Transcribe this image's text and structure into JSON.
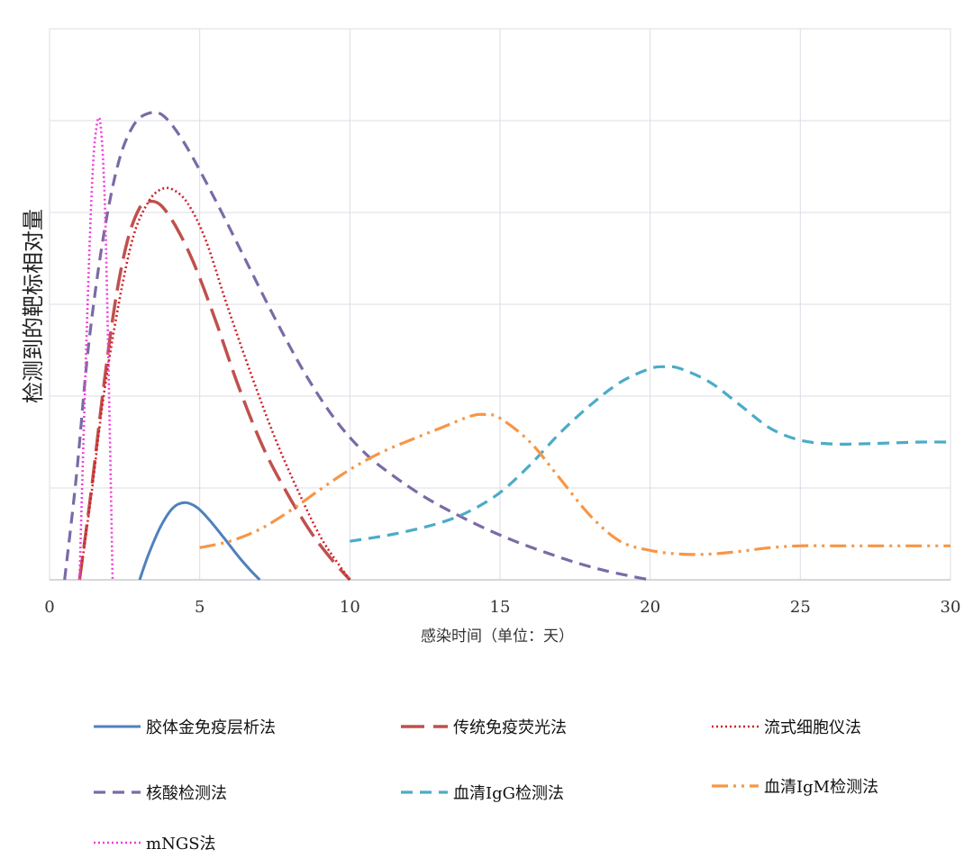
{
  "chart_data": {
    "type": "line",
    "title": "",
    "xlabel": "感染时间（单位：天）",
    "ylabel": "检测到的靶标相对量",
    "xlim": [
      0,
      30
    ],
    "ylim": [
      0,
      6
    ],
    "xticks": [
      0,
      5,
      10,
      15,
      20,
      25,
      30
    ],
    "grid": true,
    "legend_position": "bottom",
    "series": [
      {
        "name": "胶体金免疫层析法",
        "color": "#4f81bd",
        "dash": "solid",
        "x": [
          3.0,
          3.3,
          3.7,
          4.1,
          4.5,
          4.9,
          5.3,
          5.8,
          6.3,
          6.7,
          7.0
        ],
        "y": [
          0,
          0.28,
          0.58,
          0.78,
          0.84,
          0.79,
          0.66,
          0.46,
          0.25,
          0.1,
          0
        ]
      },
      {
        "name": "传统免疫荧光法",
        "color": "#c0504d",
        "dash": "longdash",
        "x": [
          1.0,
          1.4,
          1.8,
          2.2,
          2.6,
          3.0,
          3.3,
          3.7,
          4.2,
          4.8,
          5.5,
          6.3,
          7.1,
          7.9,
          8.7,
          9.4,
          10.0
        ],
        "y": [
          0,
          1.0,
          2.1,
          3.05,
          3.7,
          4.05,
          4.12,
          4.08,
          3.85,
          3.45,
          2.85,
          2.1,
          1.45,
          0.95,
          0.52,
          0.22,
          0
        ]
      },
      {
        "name": "流式细胞仪法",
        "color": "#d0202a",
        "dash": "dotted",
        "x": [
          1.0,
          1.4,
          1.8,
          2.3,
          2.8,
          3.3,
          3.7,
          4.1,
          4.6,
          5.2,
          5.9,
          6.7,
          7.5,
          8.3,
          9.0,
          9.6,
          10.0
        ],
        "y": [
          0,
          0.95,
          2.0,
          3.0,
          3.75,
          4.12,
          4.25,
          4.25,
          4.1,
          3.7,
          3.0,
          2.25,
          1.55,
          0.95,
          0.48,
          0.18,
          0
        ]
      },
      {
        "name": "核酸检测法",
        "color": "#7b6aa6",
        "dash": "dashed",
        "x": [
          0.5,
          0.9,
          1.3,
          1.8,
          2.3,
          2.8,
          3.3,
          3.8,
          4.5,
          5.5,
          6.5,
          7.5,
          8.5,
          9.5,
          10.5,
          11.5,
          12.5,
          13.5,
          14.5,
          15.5,
          16.5,
          17.5,
          18.5,
          19.5,
          20.0
        ],
        "y": [
          0,
          1.15,
          2.55,
          3.75,
          4.55,
          4.95,
          5.08,
          5.05,
          4.75,
          4.15,
          3.5,
          2.85,
          2.25,
          1.75,
          1.38,
          1.12,
          0.9,
          0.72,
          0.56,
          0.42,
          0.3,
          0.19,
          0.1,
          0.03,
          0
        ]
      },
      {
        "name": "血清IgG检测法",
        "color": "#4bacc6",
        "dash": "dashed",
        "x": [
          10.0,
          11.5,
          13.0,
          14.0,
          15.0,
          16.0,
          17.0,
          18.0,
          19.0,
          20.0,
          20.5,
          21.0,
          22.0,
          23.0,
          24.0,
          25.0,
          26.0,
          27.0,
          28.0,
          29.0,
          30.0
        ],
        "y": [
          0.42,
          0.5,
          0.62,
          0.75,
          0.95,
          1.25,
          1.6,
          1.9,
          2.15,
          2.3,
          2.32,
          2.3,
          2.15,
          1.9,
          1.65,
          1.52,
          1.48,
          1.48,
          1.49,
          1.5,
          1.5
        ]
      },
      {
        "name": "血清IgM检测法",
        "color": "#f79646",
        "dash": "dashdotdot",
        "x": [
          5.0,
          6.0,
          7.0,
          8.0,
          9.0,
          10.0,
          11.0,
          12.0,
          13.0,
          14.0,
          14.5,
          15.0,
          16.0,
          17.0,
          18.0,
          19.0,
          20.0,
          21.0,
          22.0,
          23.0,
          24.0,
          25.0,
          26.0,
          27.0,
          28.0,
          29.0,
          30.0
        ],
        "y": [
          0.35,
          0.42,
          0.55,
          0.75,
          0.98,
          1.2,
          1.38,
          1.52,
          1.65,
          1.78,
          1.8,
          1.76,
          1.5,
          1.1,
          0.7,
          0.42,
          0.32,
          0.28,
          0.28,
          0.31,
          0.35,
          0.37,
          0.37,
          0.37,
          0.37,
          0.37,
          0.37
        ]
      },
      {
        "name": "mNGS法",
        "color": "#ee40d8",
        "dash": "dotted",
        "x": [
          1.0,
          1.2,
          1.4,
          1.55,
          1.7,
          1.85,
          2.0,
          2.1
        ],
        "y": [
          0,
          2.3,
          4.2,
          4.9,
          4.95,
          4.0,
          1.7,
          0
        ]
      }
    ]
  }
}
